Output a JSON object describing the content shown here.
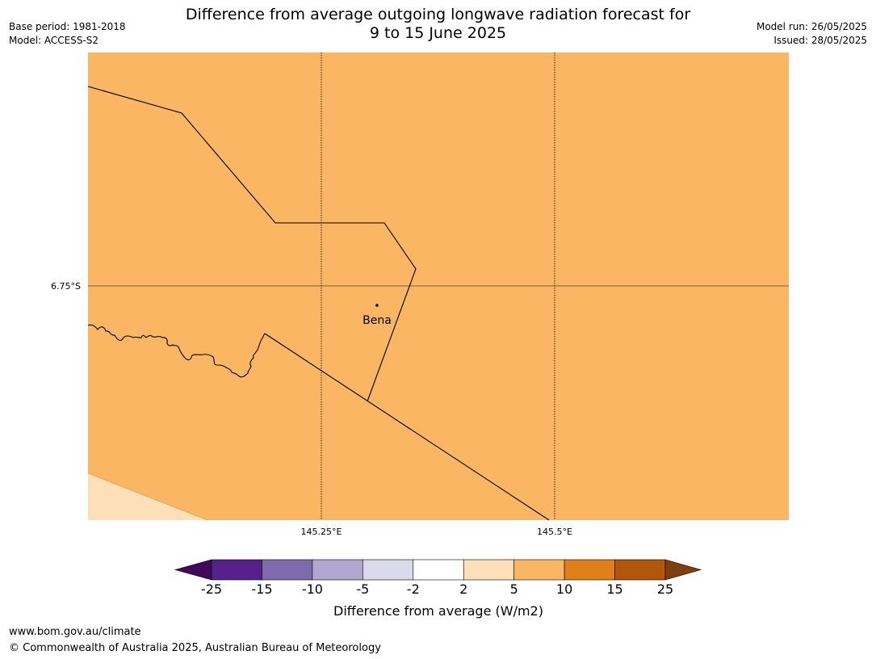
{
  "header": {
    "title_line1": "Difference from average outgoing longwave radiation forecast for",
    "title_line2": "9 to 15 June 2025",
    "base_period": "Base period: 1981-2018",
    "model": "Model: ACCESS-S2",
    "model_run": "Model run: 26/05/2025",
    "issued": "Issued: 28/05/2025"
  },
  "map": {
    "fill_color": "#fab663",
    "corner_fill_color": "#fde0b8",
    "place_label": "Bena",
    "lat_label": "6.75°S",
    "lon_labels": [
      "145.25°E",
      "145.5°E"
    ]
  },
  "colorbar": {
    "label": "Difference from average (W/m2)",
    "ticks": [
      "-25",
      "-15",
      "-10",
      "-5",
      "-2",
      "2",
      "5",
      "10",
      "15",
      "25"
    ],
    "colors": [
      "#3f0a5e",
      "#55228a",
      "#7e6aad",
      "#b0a6d0",
      "#dadaeb",
      "#ffffff",
      "#fde0b8",
      "#fab663",
      "#e0801a",
      "#b1560a",
      "#7e3f0d"
    ]
  },
  "footer": {
    "url": "www.bom.gov.au/climate",
    "copyright": "© Commonwealth of Australia 2025, Australian Bureau of Meteorology"
  }
}
